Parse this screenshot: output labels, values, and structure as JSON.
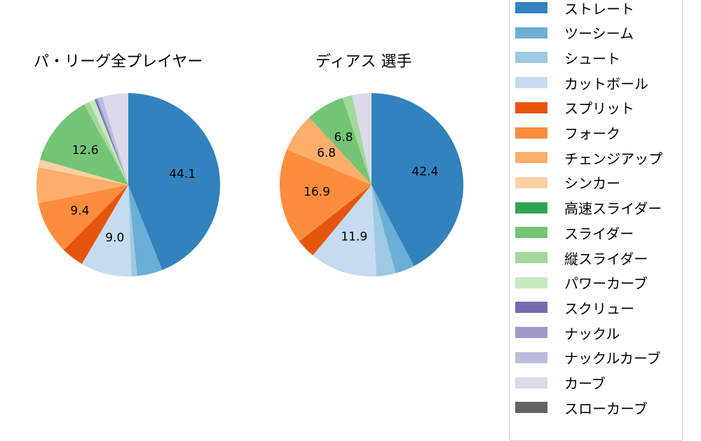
{
  "chart_data": [
    {
      "type": "pie",
      "title": "パ・リーグ全プレイヤー",
      "categories": [
        "ストレート",
        "ツーシーム",
        "シュート",
        "カットボール",
        "スプリット",
        "フォーク",
        "チェンジアップ",
        "シンカー",
        "高速スライダー",
        "スライダー",
        "縦スライダー",
        "パワーカーブ",
        "スクリュー",
        "ナックル",
        "ナックルカーブ",
        "カーブ",
        "スローカーブ"
      ],
      "values": [
        44.1,
        4.5,
        1.0,
        9.0,
        4.0,
        9.4,
        6.3,
        1.4,
        0.0,
        12.6,
        1.0,
        1.0,
        0.3,
        0.3,
        0.8,
        4.6,
        0.0
      ],
      "data_labels": [
        "44.1",
        "",
        "",
        "9.0",
        "",
        "9.4",
        "",
        "",
        "",
        "12.6",
        "",
        "",
        "",
        "",
        "",
        "",
        ""
      ]
    },
    {
      "type": "pie",
      "title": "ディアス  選手",
      "categories": [
        "ストレート",
        "ツーシーム",
        "シュート",
        "カットボール",
        "スプリット",
        "フォーク",
        "チェンジアップ",
        "シンカー",
        "高速スライダー",
        "スライダー",
        "縦スライダー",
        "パワーカーブ",
        "スクリュー",
        "ナックル",
        "ナックルカーブ",
        "カーブ",
        "スローカーブ"
      ],
      "values": [
        42.4,
        3.4,
        3.4,
        11.9,
        3.4,
        16.9,
        6.8,
        0,
        0,
        6.8,
        1.7,
        0,
        0,
        0,
        0,
        3.4,
        0
      ],
      "data_labels": [
        "42.4",
        "",
        "",
        "11.9",
        "",
        "16.9",
        "6.8",
        "",
        "",
        "6.8",
        "",
        "",
        "",
        "",
        "",
        "",
        ""
      ]
    }
  ],
  "legend": {
    "items": [
      {
        "label": "ストレート",
        "color": "#3182bd"
      },
      {
        "label": "ツーシーム",
        "color": "#6baed6"
      },
      {
        "label": "シュート",
        "color": "#9ecae1"
      },
      {
        "label": "カットボール",
        "color": "#c6dbef"
      },
      {
        "label": "スプリット",
        "color": "#e6550d"
      },
      {
        "label": "フォーク",
        "color": "#fd8d3c"
      },
      {
        "label": "チェンジアップ",
        "color": "#fdae6b"
      },
      {
        "label": "シンカー",
        "color": "#fdd0a2"
      },
      {
        "label": "高速スライダー",
        "color": "#31a354"
      },
      {
        "label": "スライダー",
        "color": "#74c476"
      },
      {
        "label": "縦スライダー",
        "color": "#a1d99b"
      },
      {
        "label": "パワーカーブ",
        "color": "#c7e9c0"
      },
      {
        "label": "スクリュー",
        "color": "#756bb1"
      },
      {
        "label": "ナックル",
        "color": "#9e9ac8"
      },
      {
        "label": "ナックルカーブ",
        "color": "#bcbddc"
      },
      {
        "label": "カーブ",
        "color": "#dadaeb"
      },
      {
        "label": "スローカーブ",
        "color": "#636363"
      }
    ]
  }
}
